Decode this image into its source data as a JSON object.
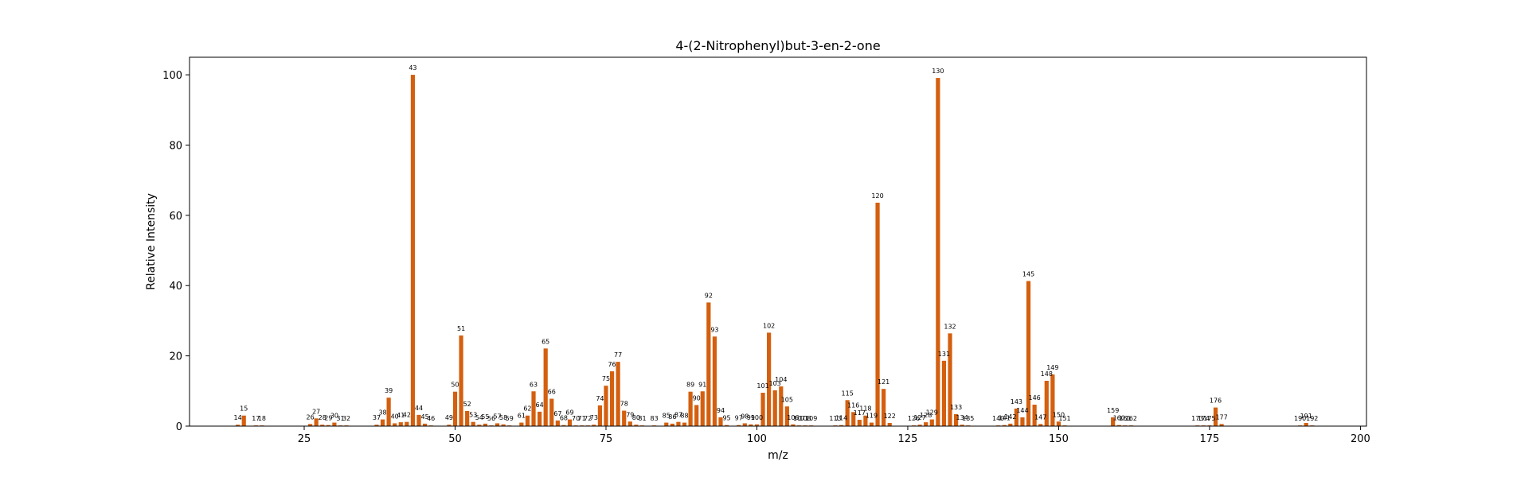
{
  "chart_data": {
    "type": "bar",
    "title": "4-(2-Nitrophenyl)but-3-en-2-one",
    "xlabel": "m/z",
    "ylabel": "Relative Intensity",
    "xlim": [
      6,
      201
    ],
    "ylim": [
      0,
      105
    ],
    "xticks": [
      25,
      50,
      75,
      100,
      125,
      150,
      175,
      200
    ],
    "yticks": [
      0,
      20,
      40,
      60,
      80,
      100
    ],
    "grid": false,
    "bar_color": "#d35f0f",
    "peaks": [
      {
        "mz": 14,
        "intensity": 0.4
      },
      {
        "mz": 15,
        "intensity": 3.0
      },
      {
        "mz": 17,
        "intensity": 0.2
      },
      {
        "mz": 18,
        "intensity": 0.2
      },
      {
        "mz": 26,
        "intensity": 0.6
      },
      {
        "mz": 27,
        "intensity": 2.2
      },
      {
        "mz": 28,
        "intensity": 0.4
      },
      {
        "mz": 29,
        "intensity": 0.3
      },
      {
        "mz": 30,
        "intensity": 1.0
      },
      {
        "mz": 31,
        "intensity": 0.2
      },
      {
        "mz": 32,
        "intensity": 0.2
      },
      {
        "mz": 37,
        "intensity": 0.4
      },
      {
        "mz": 38,
        "intensity": 1.9
      },
      {
        "mz": 39,
        "intensity": 8.1
      },
      {
        "mz": 40,
        "intensity": 0.8
      },
      {
        "mz": 41,
        "intensity": 1.1
      },
      {
        "mz": 42,
        "intensity": 1.2
      },
      {
        "mz": 43,
        "intensity": 100
      },
      {
        "mz": 44,
        "intensity": 3.2
      },
      {
        "mz": 45,
        "intensity": 0.7
      },
      {
        "mz": 46,
        "intensity": 0.2
      },
      {
        "mz": 49,
        "intensity": 0.4
      },
      {
        "mz": 50,
        "intensity": 9.8
      },
      {
        "mz": 51,
        "intensity": 25.8
      },
      {
        "mz": 52,
        "intensity": 4.3
      },
      {
        "mz": 53,
        "intensity": 1.2
      },
      {
        "mz": 54,
        "intensity": 0.4
      },
      {
        "mz": 55,
        "intensity": 0.7
      },
      {
        "mz": 56,
        "intensity": 0.2
      },
      {
        "mz": 57,
        "intensity": 0.8
      },
      {
        "mz": 58,
        "intensity": 0.5
      },
      {
        "mz": 59,
        "intensity": 0.2
      },
      {
        "mz": 61,
        "intensity": 1.0
      },
      {
        "mz": 62,
        "intensity": 3.0
      },
      {
        "mz": 63,
        "intensity": 9.9
      },
      {
        "mz": 64,
        "intensity": 4.1
      },
      {
        "mz": 65,
        "intensity": 22.1
      },
      {
        "mz": 66,
        "intensity": 7.8
      },
      {
        "mz": 67,
        "intensity": 1.6
      },
      {
        "mz": 68,
        "intensity": 0.3
      },
      {
        "mz": 69,
        "intensity": 1.9
      },
      {
        "mz": 70,
        "intensity": 0.2
      },
      {
        "mz": 71,
        "intensity": 0.2
      },
      {
        "mz": 72,
        "intensity": 0.2
      },
      {
        "mz": 73,
        "intensity": 0.4
      },
      {
        "mz": 74,
        "intensity": 5.9
      },
      {
        "mz": 75,
        "intensity": 11.5
      },
      {
        "mz": 76,
        "intensity": 15.6
      },
      {
        "mz": 77,
        "intensity": 18.3
      },
      {
        "mz": 78,
        "intensity": 4.4
      },
      {
        "mz": 79,
        "intensity": 1.3
      },
      {
        "mz": 80,
        "intensity": 0.4
      },
      {
        "mz": 81,
        "intensity": 0.2
      },
      {
        "mz": 83,
        "intensity": 0.2
      },
      {
        "mz": 85,
        "intensity": 1.0
      },
      {
        "mz": 86,
        "intensity": 0.7
      },
      {
        "mz": 87,
        "intensity": 1.2
      },
      {
        "mz": 88,
        "intensity": 1.0
      },
      {
        "mz": 89,
        "intensity": 9.8
      },
      {
        "mz": 90,
        "intensity": 6.0
      },
      {
        "mz": 91,
        "intensity": 9.9
      },
      {
        "mz": 92,
        "intensity": 35.2
      },
      {
        "mz": 93,
        "intensity": 25.5
      },
      {
        "mz": 94,
        "intensity": 2.5
      },
      {
        "mz": 95,
        "intensity": 0.3
      },
      {
        "mz": 97,
        "intensity": 0.3
      },
      {
        "mz": 98,
        "intensity": 0.8
      },
      {
        "mz": 99,
        "intensity": 0.5
      },
      {
        "mz": 100,
        "intensity": 0.5
      },
      {
        "mz": 101,
        "intensity": 9.5
      },
      {
        "mz": 102,
        "intensity": 26.6
      },
      {
        "mz": 103,
        "intensity": 10.2
      },
      {
        "mz": 104,
        "intensity": 11.3
      },
      {
        "mz": 105,
        "intensity": 5.6
      },
      {
        "mz": 106,
        "intensity": 0.5
      },
      {
        "mz": 107,
        "intensity": 0.2
      },
      {
        "mz": 108,
        "intensity": 0.2
      },
      {
        "mz": 109,
        "intensity": 0.2
      },
      {
        "mz": 113,
        "intensity": 0.2
      },
      {
        "mz": 114,
        "intensity": 0.3
      },
      {
        "mz": 115,
        "intensity": 7.4
      },
      {
        "mz": 116,
        "intensity": 4.0
      },
      {
        "mz": 117,
        "intensity": 1.8
      },
      {
        "mz": 118,
        "intensity": 3.0
      },
      {
        "mz": 119,
        "intensity": 1.0
      },
      {
        "mz": 120,
        "intensity": 63.6
      },
      {
        "mz": 121,
        "intensity": 10.6
      },
      {
        "mz": 122,
        "intensity": 0.9
      },
      {
        "mz": 126,
        "intensity": 0.2
      },
      {
        "mz": 127,
        "intensity": 0.4
      },
      {
        "mz": 128,
        "intensity": 1.1
      },
      {
        "mz": 129,
        "intensity": 1.9
      },
      {
        "mz": 130,
        "intensity": 99.1
      },
      {
        "mz": 131,
        "intensity": 18.6
      },
      {
        "mz": 132,
        "intensity": 26.4
      },
      {
        "mz": 133,
        "intensity": 3.4
      },
      {
        "mz": 134,
        "intensity": 0.4
      },
      {
        "mz": 135,
        "intensity": 0.2
      },
      {
        "mz": 140,
        "intensity": 0.2
      },
      {
        "mz": 141,
        "intensity": 0.3
      },
      {
        "mz": 142,
        "intensity": 0.7
      },
      {
        "mz": 143,
        "intensity": 5.0
      },
      {
        "mz": 144,
        "intensity": 2.5
      },
      {
        "mz": 145,
        "intensity": 41.3
      },
      {
        "mz": 146,
        "intensity": 6.1
      },
      {
        "mz": 147,
        "intensity": 0.6
      },
      {
        "mz": 148,
        "intensity": 12.9
      },
      {
        "mz": 149,
        "intensity": 14.7
      },
      {
        "mz": 150,
        "intensity": 1.3
      },
      {
        "mz": 151,
        "intensity": 0.2
      },
      {
        "mz": 159,
        "intensity": 2.5
      },
      {
        "mz": 160,
        "intensity": 0.3
      },
      {
        "mz": 161,
        "intensity": 0.2
      },
      {
        "mz": 162,
        "intensity": 0.2
      },
      {
        "mz": 173,
        "intensity": 0.2
      },
      {
        "mz": 174,
        "intensity": 0.2
      },
      {
        "mz": 175,
        "intensity": 0.2
      },
      {
        "mz": 176,
        "intensity": 5.3
      },
      {
        "mz": 177,
        "intensity": 0.6
      },
      {
        "mz": 190,
        "intensity": 0.2
      },
      {
        "mz": 191,
        "intensity": 0.9
      },
      {
        "mz": 192,
        "intensity": 0.2
      }
    ]
  }
}
